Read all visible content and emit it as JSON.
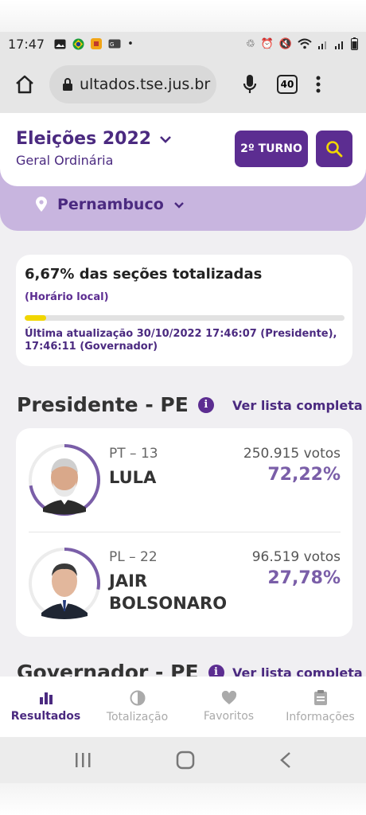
{
  "status_bar": {
    "time": "17:47",
    "left_icons": [
      "image-icon",
      "brazil-flag-icon",
      "app-icon",
      "gif-icon",
      "dot-icon"
    ],
    "right_icons": [
      "recycle-icon",
      "alarm-icon",
      "mute-icon",
      "wifi-icon",
      "signal-icon",
      "signal-icon-2",
      "battery-icon"
    ]
  },
  "browser": {
    "url": "ultados.tse.jus.br",
    "tab_count": "40"
  },
  "header": {
    "title": "Eleições 2022",
    "subtitle": "Geral Ordinária",
    "turno_label": "2º TURNO"
  },
  "location": {
    "state": "Pernambuco"
  },
  "progress": {
    "title": "6,67% das seções totalizadas",
    "subtitle": "(Horário local)",
    "fraction": 0.0667,
    "update": "Última atualização 30/10/2022 17:46:07 (Presidente), 17:46:11 (Governador)"
  },
  "president": {
    "title": "Presidente - PE",
    "see_all": "Ver lista completa",
    "candidates": [
      {
        "party": "PT – 13",
        "name": "LULA",
        "votes": "250.915 votos",
        "pct": "72,22%",
        "share": 0.7222
      },
      {
        "party": "PL – 22",
        "name": "JAIR BOLSONARO",
        "votes": "96.519 votos",
        "pct": "27,78%",
        "share": 0.2778
      }
    ]
  },
  "governor": {
    "title": "Governador - PE",
    "see_all": "Ver lista completa"
  },
  "bottom_nav": {
    "items": [
      {
        "label": "Resultados",
        "icon": "bar-chart-icon"
      },
      {
        "label": "Totalização",
        "icon": "pie-icon"
      },
      {
        "label": "Favoritos",
        "icon": "heart-icon"
      },
      {
        "label": "Informações",
        "icon": "clipboard-icon"
      }
    ]
  },
  "colors": {
    "brand_purple": "#5c2d91",
    "accent_yellow": "#f1d600",
    "band_lilac": "#c8b5df"
  }
}
